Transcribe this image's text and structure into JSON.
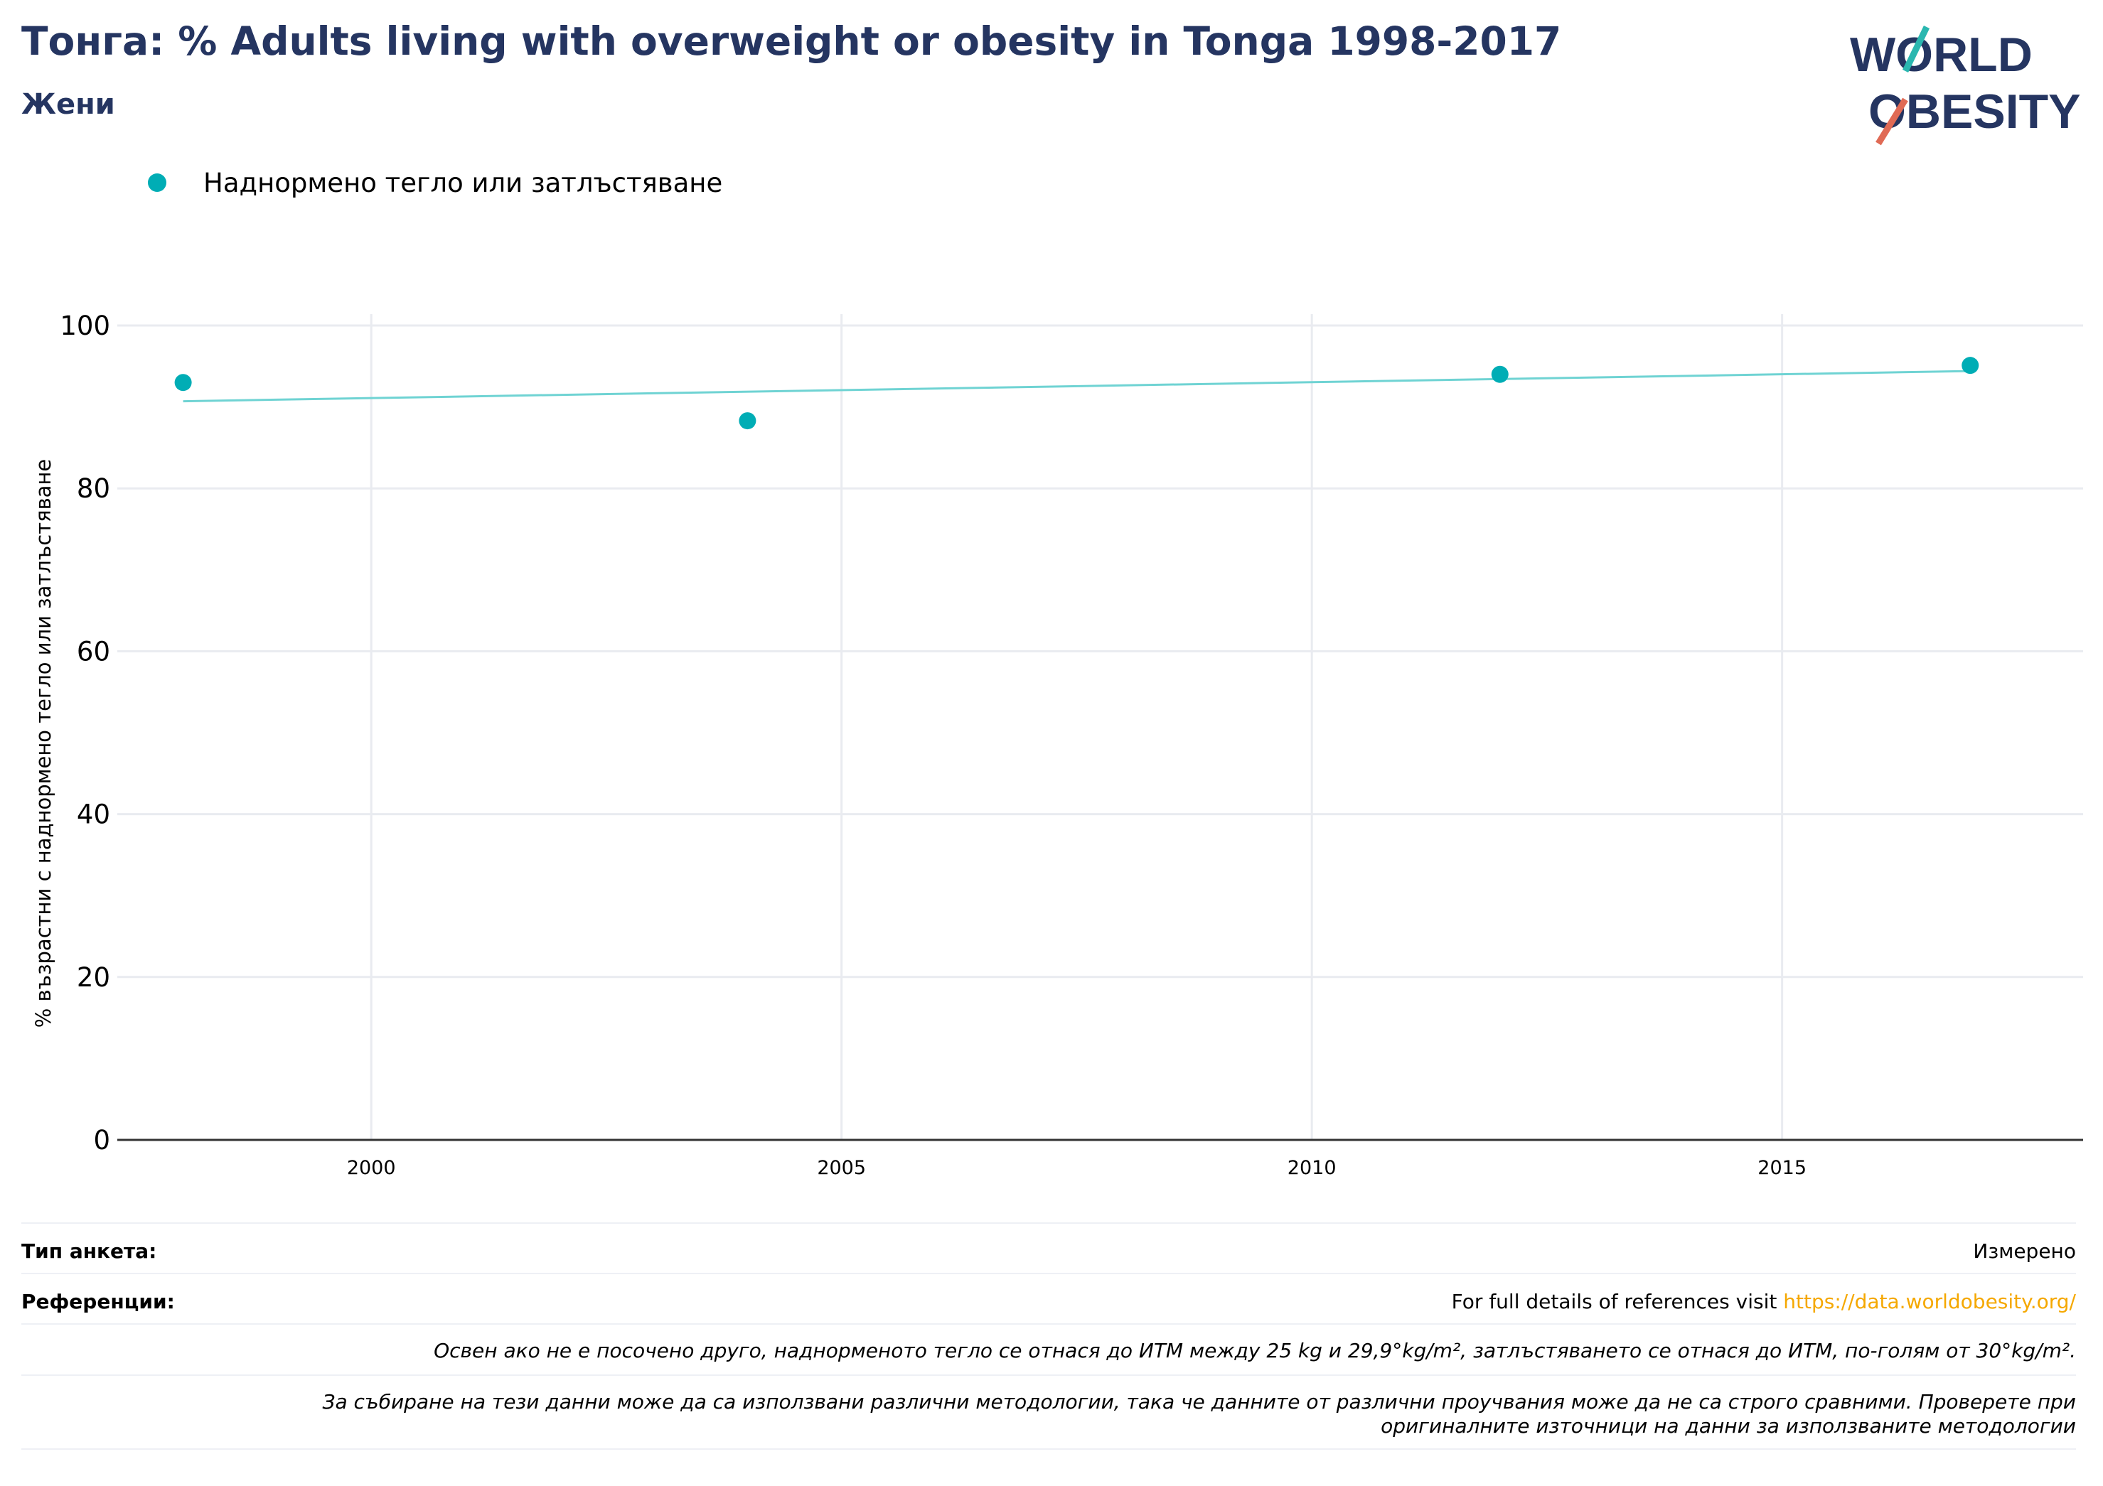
{
  "header": {
    "title": "Тонга: % Adults living with overweight or obesity in Tonga 1998-2017",
    "subtitle": "Жени"
  },
  "logo": {
    "line1": "WORLD",
    "line2": "OBESITY"
  },
  "colors": {
    "title": "#253561",
    "series": "#00adb5",
    "trend": "#6fd3d3",
    "link": "#f5a800",
    "grid": "#e9ebf0"
  },
  "chart_data": {
    "type": "scatter",
    "ylabel": "% възрастни с наднормено тегло или затлъстяване",
    "xlabel": "",
    "xlim": [
      1997.3,
      2018.2
    ],
    "ylim": [
      0,
      100
    ],
    "x_ticks": [
      2000,
      2005,
      2010,
      2015
    ],
    "y_ticks": [
      0,
      20,
      40,
      60,
      80,
      100
    ],
    "grid": true,
    "legend_position": "top-left",
    "series": [
      {
        "name": "Наднормено тегло или затлъстяване",
        "x": [
          1998,
          2004,
          2012,
          2017
        ],
        "y": [
          93.0,
          88.3,
          94.0,
          95.1
        ]
      }
    ],
    "trendline": {
      "x": [
        1998,
        2017
      ],
      "y": [
        90.7,
        94.4
      ]
    }
  },
  "footer": {
    "survey_type_label": "Тип анкета:",
    "survey_type_value": "Измерено",
    "references_label": "Референции:",
    "references_text": "For full details of references visit ",
    "references_link": "https://data.worldobesity.org/",
    "note1": "Освен ако не е посочено друго, наднорменото тегло се отнася до ИТМ между 25 kg и 29,9°kg/m², затлъстяването се отнася до ИТМ, по-голям от 30°kg/m².",
    "note2_line1": "За събиране на тези данни може да са използвани различни методологии, така че данните от различни проучвания може да не са строго сравними. Проверете при",
    "note2_line2": "оригиналните източници на данни за използваните методологии"
  }
}
